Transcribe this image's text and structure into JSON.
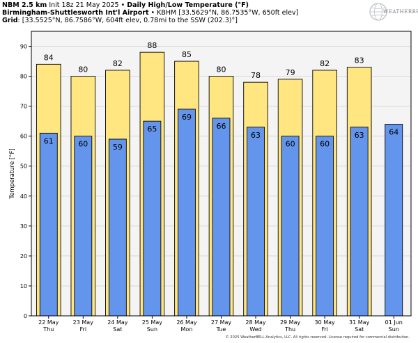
{
  "header": {
    "line1": {
      "bold1": "NBM 2.5 km",
      "text1": " Init 18z 21 May 2025 • ",
      "bold2": "Daily High/Low Temperature (°F)"
    },
    "line2": {
      "bold1": "Birmingham-Shuttlesworth Int'l Airport",
      "text1": " • KBHM [33.5629°N, 86.7535°W, 650ft elev]"
    },
    "line3": {
      "bold1": "Grid",
      "text1": ": [33.5525°N, 86.7586°W, 604ft elev, 0.78mi to the SSW (202.3)°]"
    }
  },
  "logo": {
    "text": "WEATHERBELL",
    "icon": "weatherbell-globe-icon"
  },
  "footer": "© 2025 WeatherBELL Analytics, LLC. All rights reserved. License required for commercial distribution.",
  "colors": {
    "high": "#ffe680",
    "low": "#6495ed",
    "grid": "#d8d8d8",
    "plot_bg": "#f4f4f4"
  },
  "chart_data": {
    "type": "bar",
    "ylabel": "Temperature [°F]",
    "ylim": [
      0,
      95
    ],
    "yticks": [
      0,
      10,
      20,
      30,
      40,
      50,
      60,
      70,
      80,
      90
    ],
    "grid": true,
    "categories": [
      {
        "date": "22 May",
        "day": "Thu"
      },
      {
        "date": "23 May",
        "day": "Fri"
      },
      {
        "date": "24 May",
        "day": "Sat"
      },
      {
        "date": "25 May",
        "day": "Sun"
      },
      {
        "date": "26 May",
        "day": "Mon"
      },
      {
        "date": "27 May",
        "day": "Tue"
      },
      {
        "date": "28 May",
        "day": "Wed"
      },
      {
        "date": "29 May",
        "day": "Thu"
      },
      {
        "date": "30 May",
        "day": "Fri"
      },
      {
        "date": "31 May",
        "day": "Sat"
      },
      {
        "date": "01 Jun",
        "day": "Sun"
      }
    ],
    "series": [
      {
        "key": "high",
        "values": [
          84,
          80,
          82,
          88,
          85,
          80,
          78,
          79,
          82,
          83,
          null
        ]
      },
      {
        "key": "low",
        "values": [
          61,
          60,
          59,
          65,
          69,
          66,
          63,
          60,
          60,
          63,
          64
        ]
      }
    ]
  }
}
